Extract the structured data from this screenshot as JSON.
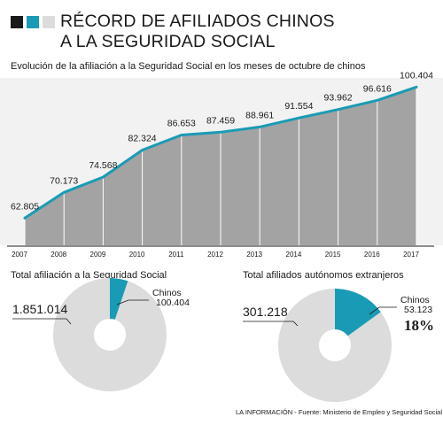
{
  "header": {
    "title_line1": "RÉCORD DE AFILIADOS CHINOS",
    "title_line2": "A LA SEGURIDAD SOCIAL",
    "subtitle": "Evolución de la afiliación a la Seguridad Social en los meses de octubre de chinos",
    "squares": [
      "#1a1a1a",
      "#1a9bb5",
      "#dcdcdc"
    ]
  },
  "chart_data": [
    {
      "type": "area",
      "categories": [
        "2007",
        "2008",
        "2009",
        "2010",
        "2011",
        "2012",
        "2013",
        "2014",
        "2015",
        "2016",
        "2017"
      ],
      "values": [
        62805,
        70173,
        74568,
        82324,
        86653,
        87459,
        88961,
        91554,
        93962,
        96616,
        100404
      ],
      "value_labels": [
        "62.805",
        "70.173",
        "74.568",
        "82.324",
        "86.653",
        "87.459",
        "88.961",
        "91.554",
        "93.962",
        "96.616",
        "100.404"
      ],
      "ylim": [
        55000,
        101000
      ],
      "grid": true,
      "colors": {
        "fill": "#a3a3a3",
        "line": "#1a9bb5",
        "grid": "#ffffff"
      }
    },
    {
      "type": "pie",
      "title": "Total afiliación a la Seguridad Social",
      "slices": [
        {
          "label": "",
          "value": 1851014,
          "value_label": "1.851.014",
          "color": "#dcdcdc"
        },
        {
          "label": "Chinos",
          "value": 100404,
          "value_label": "100.404",
          "color": "#1a9bb5"
        }
      ]
    },
    {
      "type": "pie",
      "title": "Total afiliados autónomos extranjeros",
      "slices": [
        {
          "label": "",
          "value": 301218,
          "value_label": "301.218",
          "color": "#dcdcdc"
        },
        {
          "label": "Chinos",
          "value": 53123,
          "value_label": "53.123",
          "color": "#1a9bb5",
          "percent": "18%"
        }
      ]
    }
  ],
  "source": "LA INFORMACIÓN - Fuente: Ministerio de Empleo y Seguridad Social"
}
